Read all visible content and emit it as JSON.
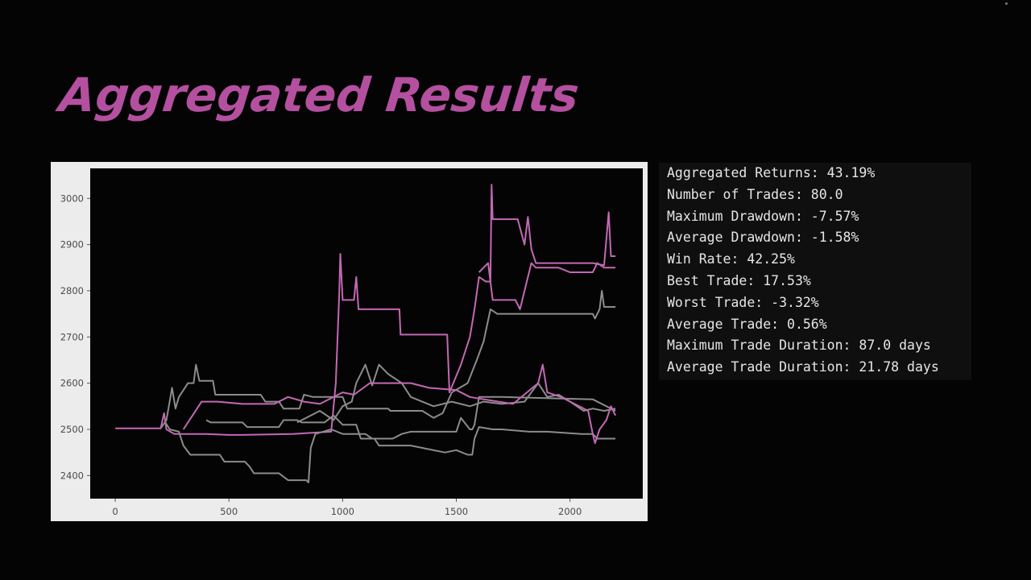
{
  "slide": {
    "title": "Aggregated Results"
  },
  "stats": [
    "Aggregated Returns: 43.19%",
    "Number of Trades: 80.0",
    "Maximum Drawdown: -7.57%",
    "Average Drawdown: -1.58%",
    "Win Rate: 42.25%",
    "Best Trade: 17.53%",
    "Worst Trade: -3.32%",
    "Average Trade: 0.56%",
    "Maximum Trade Duration: 87.0 days",
    "Average Trade Duration: 21.78 days"
  ],
  "colors": {
    "title": "#b4509f",
    "chart_frame": "#ececec",
    "plot_bg": "#040404",
    "series_gray": "#8c8c8c",
    "series_pink": "#c468b4"
  },
  "chart_data": {
    "type": "line",
    "title": "",
    "xlabel": "",
    "ylabel": "",
    "xlim": [
      -110,
      2320
    ],
    "ylim": [
      2350,
      3065
    ],
    "xticks": [
      0,
      500,
      1000,
      1500,
      2000
    ],
    "yticks": [
      2400,
      2500,
      2600,
      2700,
      2800,
      2900,
      3000
    ],
    "grid": false,
    "legend": "none",
    "series": [
      {
        "color": "#c468b4",
        "points": [
          [
            0,
            2502
          ],
          [
            200,
            2502
          ],
          [
            215,
            2535
          ],
          [
            225,
            2500
          ],
          [
            260,
            2490
          ],
          [
            400,
            2490
          ],
          [
            500,
            2488
          ],
          [
            560,
            2488
          ],
          [
            780,
            2490
          ],
          [
            950,
            2495
          ],
          [
            970,
            2600
          ],
          [
            985,
            2790
          ],
          [
            990,
            2880
          ],
          [
            1000,
            2780
          ],
          [
            1050,
            2780
          ],
          [
            1060,
            2830
          ],
          [
            1070,
            2760
          ],
          [
            1250,
            2760
          ],
          [
            1255,
            2705
          ],
          [
            1460,
            2705
          ],
          [
            1470,
            2580
          ],
          [
            1520,
            2640
          ],
          [
            1560,
            2700
          ],
          [
            1580,
            2760
          ],
          [
            1600,
            2830
          ],
          [
            1630,
            2820
          ],
          [
            1650,
            2820
          ],
          [
            1655,
            3030
          ],
          [
            1660,
            2955
          ],
          [
            1770,
            2955
          ],
          [
            1800,
            2900
          ],
          [
            1815,
            2960
          ],
          [
            1830,
            2890
          ],
          [
            1850,
            2860
          ],
          [
            2000,
            2860
          ],
          [
            2100,
            2860
          ],
          [
            2150,
            2855
          ],
          [
            2170,
            2970
          ],
          [
            2180,
            2875
          ],
          [
            2200,
            2875
          ]
        ]
      },
      {
        "color": "#c468b4",
        "points": [
          [
            1600,
            2840
          ],
          [
            1640,
            2860
          ],
          [
            1660,
            2780
          ],
          [
            1760,
            2780
          ],
          [
            1780,
            2760
          ],
          [
            1800,
            2800
          ],
          [
            1830,
            2860
          ],
          [
            1850,
            2850
          ],
          [
            1950,
            2850
          ],
          [
            2000,
            2840
          ],
          [
            2100,
            2840
          ],
          [
            2120,
            2860
          ],
          [
            2150,
            2850
          ],
          [
            2200,
            2850
          ]
        ]
      },
      {
        "color": "#8c8c8c",
        "points": [
          [
            200,
            2502
          ],
          [
            225,
            2520
          ],
          [
            250,
            2590
          ],
          [
            265,
            2545
          ],
          [
            280,
            2570
          ],
          [
            320,
            2600
          ],
          [
            345,
            2600
          ],
          [
            355,
            2640
          ],
          [
            370,
            2605
          ],
          [
            430,
            2605
          ],
          [
            440,
            2575
          ],
          [
            640,
            2575
          ],
          [
            660,
            2560
          ],
          [
            720,
            2560
          ],
          [
            740,
            2545
          ],
          [
            810,
            2545
          ],
          [
            830,
            2575
          ],
          [
            870,
            2570
          ],
          [
            1000,
            2570
          ],
          [
            1020,
            2545
          ],
          [
            1200,
            2545
          ],
          [
            1210,
            2540
          ],
          [
            1350,
            2540
          ],
          [
            1400,
            2525
          ],
          [
            1440,
            2535
          ],
          [
            1480,
            2580
          ],
          [
            1550,
            2600
          ],
          [
            1590,
            2650
          ],
          [
            1620,
            2690
          ],
          [
            1650,
            2760
          ],
          [
            1680,
            2750
          ],
          [
            1870,
            2750
          ],
          [
            2000,
            2750
          ],
          [
            2100,
            2750
          ],
          [
            2110,
            2740
          ],
          [
            2130,
            2760
          ],
          [
            2140,
            2800
          ],
          [
            2150,
            2765
          ],
          [
            2200,
            2765
          ]
        ]
      },
      {
        "color": "#8c8c8c",
        "points": [
          [
            220,
            2515
          ],
          [
            240,
            2500
          ],
          [
            280,
            2495
          ],
          [
            300,
            2465
          ],
          [
            330,
            2445
          ],
          [
            460,
            2445
          ],
          [
            480,
            2430
          ],
          [
            570,
            2430
          ],
          [
            590,
            2420
          ],
          [
            610,
            2405
          ],
          [
            720,
            2405
          ],
          [
            760,
            2390
          ],
          [
            840,
            2390
          ],
          [
            850,
            2385
          ],
          [
            860,
            2460
          ],
          [
            880,
            2490
          ],
          [
            950,
            2500
          ],
          [
            1000,
            2490
          ],
          [
            1100,
            2490
          ],
          [
            1130,
            2480
          ],
          [
            1220,
            2480
          ],
          [
            1260,
            2490
          ],
          [
            1300,
            2495
          ],
          [
            1500,
            2495
          ],
          [
            1520,
            2525
          ],
          [
            1560,
            2500
          ],
          [
            1570,
            2500
          ],
          [
            1580,
            2510
          ],
          [
            1600,
            2570
          ],
          [
            1700,
            2570
          ],
          [
            2100,
            2565
          ],
          [
            2200,
            2540
          ]
        ]
      },
      {
        "color": "#8c8c8c",
        "points": [
          [
            400,
            2520
          ],
          [
            420,
            2515
          ],
          [
            560,
            2515
          ],
          [
            580,
            2505
          ],
          [
            720,
            2505
          ],
          [
            740,
            2520
          ],
          [
            800,
            2520
          ],
          [
            820,
            2515
          ],
          [
            920,
            2515
          ],
          [
            960,
            2530
          ],
          [
            1000,
            2510
          ],
          [
            1060,
            2510
          ],
          [
            1080,
            2480
          ],
          [
            1140,
            2480
          ],
          [
            1160,
            2465
          ],
          [
            1300,
            2465
          ],
          [
            1450,
            2450
          ],
          [
            1500,
            2455
          ],
          [
            1550,
            2445
          ],
          [
            1570,
            2445
          ],
          [
            1580,
            2480
          ],
          [
            1600,
            2505
          ],
          [
            1660,
            2500
          ],
          [
            1700,
            2500
          ],
          [
            1820,
            2495
          ],
          [
            1900,
            2495
          ],
          [
            2050,
            2490
          ],
          [
            2100,
            2490
          ],
          [
            2120,
            2480
          ],
          [
            2200,
            2480
          ]
        ]
      },
      {
        "color": "#8c8c8c",
        "points": [
          [
            800,
            2515
          ],
          [
            900,
            2540
          ],
          [
            960,
            2520
          ],
          [
            1000,
            2550
          ],
          [
            1040,
            2560
          ],
          [
            1060,
            2600
          ],
          [
            1100,
            2640
          ],
          [
            1130,
            2595
          ],
          [
            1160,
            2640
          ],
          [
            1200,
            2620
          ],
          [
            1260,
            2600
          ],
          [
            1300,
            2570
          ],
          [
            1400,
            2550
          ],
          [
            1480,
            2560
          ],
          [
            1560,
            2550
          ],
          [
            1620,
            2560
          ],
          [
            1700,
            2555
          ],
          [
            1800,
            2560
          ],
          [
            1860,
            2600
          ],
          [
            1900,
            2570
          ],
          [
            1950,
            2575
          ],
          [
            2000,
            2560
          ],
          [
            2060,
            2540
          ],
          [
            2100,
            2545
          ],
          [
            2150,
            2540
          ],
          [
            2200,
            2545
          ]
        ]
      },
      {
        "color": "#c468b4",
        "points": [
          [
            300,
            2500
          ],
          [
            340,
            2530
          ],
          [
            380,
            2560
          ],
          [
            450,
            2560
          ],
          [
            560,
            2555
          ],
          [
            700,
            2555
          ],
          [
            760,
            2570
          ],
          [
            830,
            2560
          ],
          [
            900,
            2555
          ],
          [
            1000,
            2580
          ],
          [
            1050,
            2575
          ],
          [
            1120,
            2600
          ],
          [
            1300,
            2600
          ],
          [
            1380,
            2590
          ],
          [
            1500,
            2585
          ],
          [
            1560,
            2570
          ],
          [
            1620,
            2565
          ],
          [
            1750,
            2555
          ],
          [
            1860,
            2600
          ],
          [
            1880,
            2640
          ],
          [
            1900,
            2580
          ],
          [
            1960,
            2570
          ],
          [
            2020,
            2555
          ],
          [
            2080,
            2540
          ],
          [
            2100,
            2490
          ],
          [
            2110,
            2470
          ],
          [
            2130,
            2500
          ],
          [
            2160,
            2520
          ],
          [
            2180,
            2550
          ],
          [
            2200,
            2530
          ]
        ]
      }
    ]
  }
}
